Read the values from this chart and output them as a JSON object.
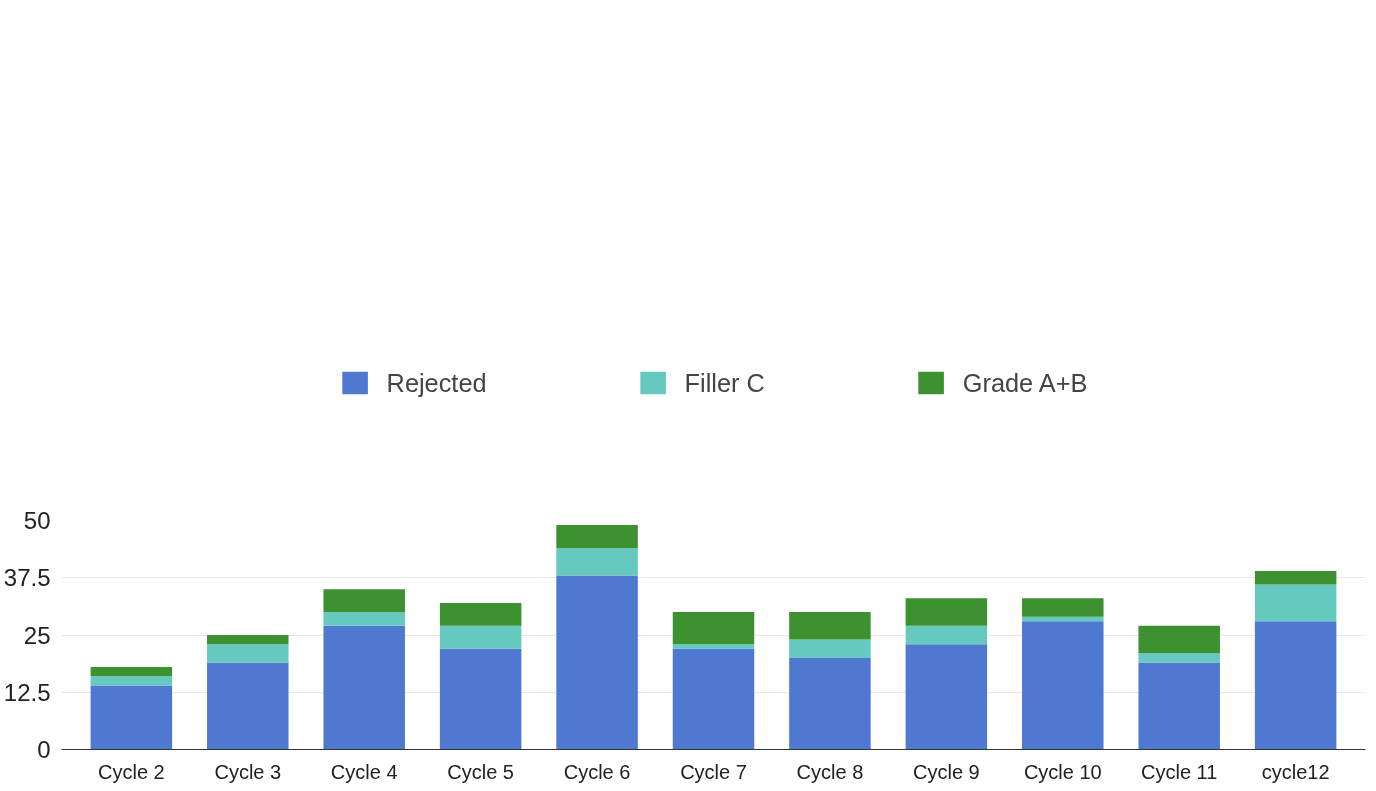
{
  "chart_data": {
    "type": "bar",
    "stacked": true,
    "categories": [
      "Cycle 2",
      "Cycle 3",
      "Cycle 4",
      "Cycle 5",
      "Cycle 6",
      "Cycle 7",
      "Cycle 8",
      "Cycle 9",
      "Cycle 10",
      "Cycle 11",
      "cycle12"
    ],
    "series": [
      {
        "name": "Rejected",
        "color": "#4f79d1",
        "values": [
          14,
          19,
          27,
          22,
          38,
          22,
          20,
          23,
          28,
          19,
          28
        ]
      },
      {
        "name": "Filler C",
        "color": "#66c9bf",
        "values": [
          2,
          4,
          3,
          5,
          6,
          1,
          4,
          4,
          1,
          2,
          8
        ]
      },
      {
        "name": "Grade A+B",
        "color": "#3d9130",
        "values": [
          2,
          2,
          5,
          5,
          5,
          7,
          6,
          6,
          4,
          6,
          3
        ]
      }
    ],
    "ylim": [
      0,
      50
    ],
    "yticks": [
      0,
      12.5,
      25,
      37.5,
      50
    ],
    "grid": "y",
    "legend": "top"
  }
}
